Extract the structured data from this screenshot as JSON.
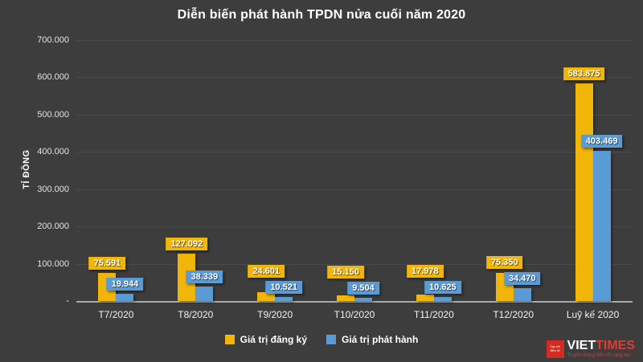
{
  "chart_data": {
    "type": "bar",
    "title": "Diễn biến phát hành TPDN nửa cuối năm 2020",
    "ylabel": "TỈ ĐỒNG",
    "ylim": [
      0,
      700000
    ],
    "ytick_labels": [
      "-",
      "100.000",
      "200.000",
      "300.000",
      "400.000",
      "500.000",
      "600.000",
      "700.000"
    ],
    "categories": [
      "T7/2020",
      "T8/2020",
      "T9/2020",
      "T10/2020",
      "T11/2020",
      "T12/2020",
      "Luỹ kế 2020"
    ],
    "series": [
      {
        "name": "Giá trị đăng ký",
        "color": "#f2b50a",
        "values": [
          75591,
          127092,
          24601,
          15150,
          17978,
          75350,
          583875
        ],
        "labels": [
          "75.591",
          "127.092",
          "24.601",
          "15.150",
          "17.978",
          "75.350",
          "583.875"
        ]
      },
      {
        "name": "Giá trị phát hành",
        "color": "#5b9bd5",
        "values": [
          19944,
          38339,
          10521,
          9504,
          10625,
          34470,
          403469
        ],
        "labels": [
          "19.944",
          "38.339",
          "10.521",
          "9.504",
          "10.625",
          "34.470",
          "403.469"
        ]
      }
    ],
    "legend_position": "bottom",
    "grid": "faint-horizontal",
    "background": "#3d3d3d"
  },
  "logo": {
    "icon_text": "Tạp chí điện tử",
    "name_white": "VIET",
    "name_red": "TIMES",
    "tagline": "Truyền thông kết nối sáng tạo"
  }
}
